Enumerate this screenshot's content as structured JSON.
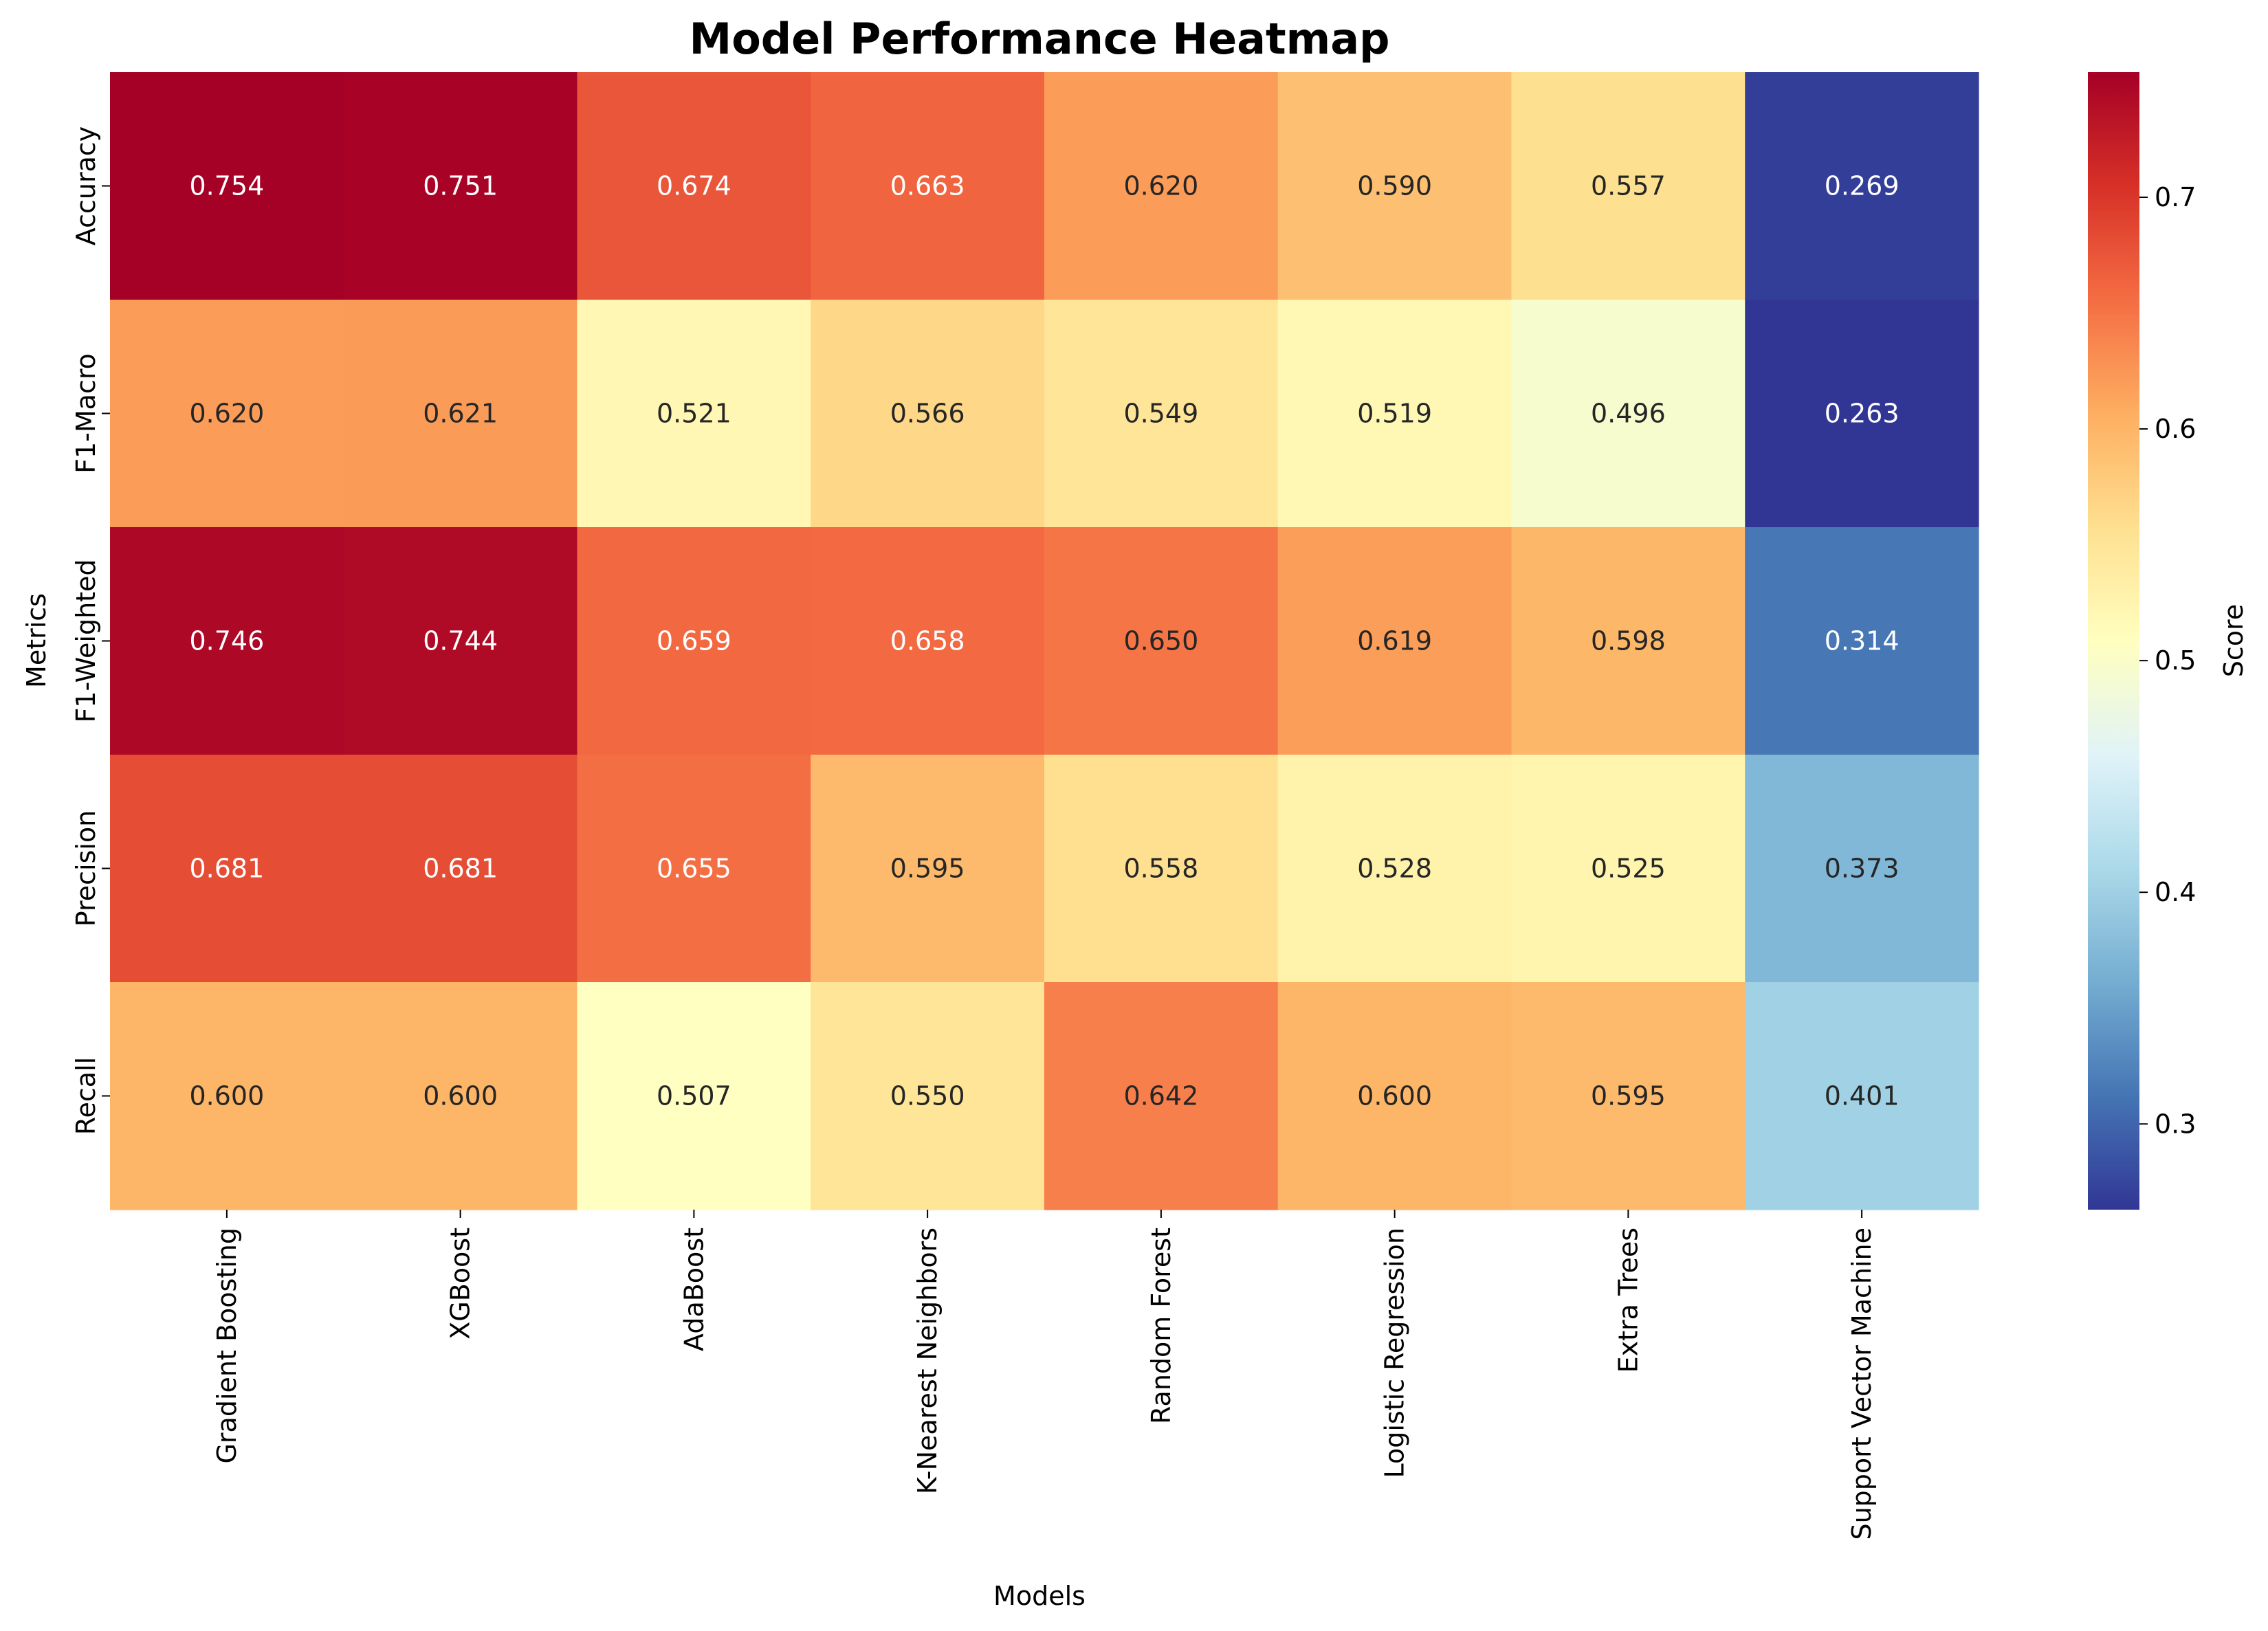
{
  "chart_data": {
    "type": "heatmap",
    "title": "Model Performance Heatmap",
    "xlabel": "Models",
    "ylabel": "Metrics",
    "x_categories": [
      "Gradient Boosting",
      "XGBoost",
      "AdaBoost",
      "K-Nearest Neighbors",
      "Random Forest",
      "Logistic Regression",
      "Extra Trees",
      "Support Vector Machine"
    ],
    "y_categories": [
      "Accuracy",
      "F1-Macro",
      "F1-Weighted",
      "Precision",
      "Recall"
    ],
    "values": [
      [
        0.754,
        0.751,
        0.674,
        0.663,
        0.62,
        0.59,
        0.557,
        0.269
      ],
      [
        0.62,
        0.621,
        0.521,
        0.566,
        0.549,
        0.519,
        0.496,
        0.263
      ],
      [
        0.746,
        0.744,
        0.659,
        0.658,
        0.65,
        0.619,
        0.598,
        0.314
      ],
      [
        0.681,
        0.681,
        0.655,
        0.595,
        0.558,
        0.528,
        0.525,
        0.373
      ],
      [
        0.6,
        0.6,
        0.507,
        0.55,
        0.642,
        0.6,
        0.595,
        0.401
      ]
    ],
    "value_format": "0.000",
    "colormap": "RdYlBu_r",
    "vmin": 0.263,
    "vmax": 0.754,
    "colorbar": {
      "label": "Score",
      "ticks": [
        0.3,
        0.4,
        0.5,
        0.6,
        0.7
      ],
      "tick_labels": [
        "0.3",
        "0.4",
        "0.5",
        "0.6",
        "0.7"
      ]
    }
  }
}
